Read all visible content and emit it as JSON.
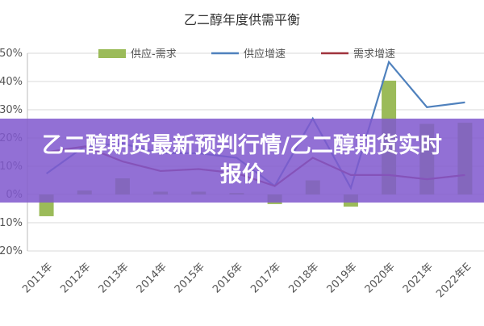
{
  "chart_data": {
    "type": "bar",
    "title": "乙二醇年度供需平衡",
    "categories": [
      "2011年",
      "2012年",
      "2013年",
      "2014年",
      "2015年",
      "2016年",
      "2017年",
      "2018年",
      "2019年",
      "2020年",
      "2021年",
      "2022年E"
    ],
    "series": [
      {
        "name": "供应-需求",
        "type": "bar",
        "color": "#9bbb59",
        "values": [
          -7.7,
          1.4,
          5.7,
          1,
          1,
          0.5,
          -3.4,
          5,
          -4.3,
          40.3,
          25,
          25.4
        ]
      },
      {
        "name": "供应增速",
        "type": "line",
        "color": "#4f81bd",
        "values": [
          7.4,
          17,
          18,
          14.6,
          14.6,
          13,
          3,
          26.9,
          2.3,
          46.9,
          30.9,
          32.6
        ]
      },
      {
        "name": "需求增速",
        "type": "line",
        "color": "#a0333d",
        "values": [
          15,
          17,
          11.7,
          8.3,
          9,
          7.5,
          3,
          13,
          6.9,
          6.9,
          5.4,
          6.9
        ]
      }
    ],
    "ylim": [
      -20,
      50
    ],
    "yticks": [
      {
        "value": -20,
        "label": "-20%"
      },
      {
        "value": -10,
        "label": "-10%"
      },
      {
        "value": 0,
        "label": "0%"
      },
      {
        "value": 10,
        "label": "10%"
      },
      {
        "value": 20,
        "label": "20%"
      },
      {
        "value": 30,
        "label": "30%"
      },
      {
        "value": 40,
        "label": "40%"
      },
      {
        "value": 50,
        "label": "50%"
      }
    ],
    "grid": true
  },
  "banner": {
    "title": "乙二醇期货最新预判行情/乙二醇期货实时报价"
  }
}
